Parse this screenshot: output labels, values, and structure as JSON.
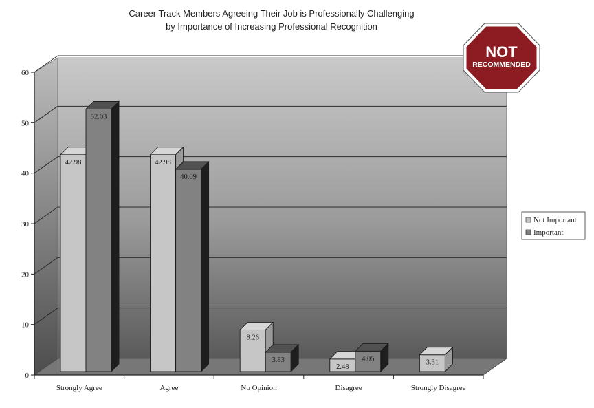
{
  "chart_data": {
    "type": "bar",
    "title_line1": "Career Track Members Agreeing Their Job is Professionally Challenging",
    "title_line2": "by Importance of Increasing Professional Recognition",
    "xlabel": "",
    "ylabel": "",
    "ylim": [
      0,
      60
    ],
    "yticks": [
      "0",
      "10",
      "20",
      "30",
      "40",
      "50",
      "60"
    ],
    "grid": true,
    "legend_position": "right",
    "categories": [
      "Strongly Agree",
      "Agree",
      "No Opinion",
      "Disagree",
      "Strongly Disagree"
    ],
    "series": [
      {
        "name": "Not Important",
        "color": "#c6c6c6",
        "values": [
          42.98,
          42.98,
          8.26,
          2.48,
          3.31
        ],
        "labels": [
          "42.98",
          "42.98",
          "8.26",
          "2.48",
          "3.31"
        ]
      },
      {
        "name": "Important",
        "color": "#828282",
        "values": [
          52.03,
          40.09,
          3.83,
          4.05,
          null
        ],
        "labels": [
          "52.03",
          "40.09",
          "3.83",
          "4.05",
          ""
        ]
      }
    ]
  },
  "stamp": {
    "line1": "NOT",
    "line2": "RECOMMENDED",
    "color": "#8c1c22"
  }
}
